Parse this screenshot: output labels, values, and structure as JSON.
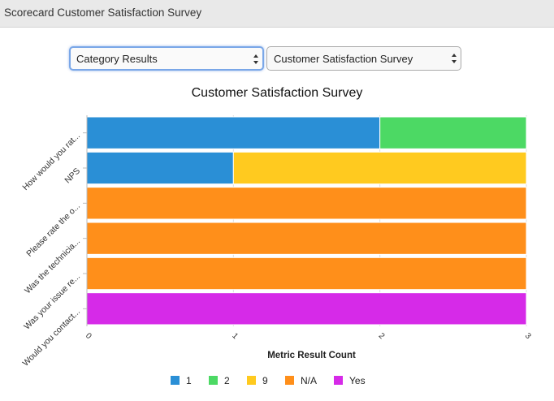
{
  "header": {
    "title": "Scorecard Customer Satisfaction Survey"
  },
  "controls": {
    "view_select": {
      "value": "Category Results"
    },
    "survey_select": {
      "value": "Customer Satisfaction Survey"
    }
  },
  "chart_data": {
    "type": "bar",
    "orientation": "horizontal",
    "stacked": true,
    "title": "Customer Satisfaction Survey",
    "xlabel": "Metric Result Count",
    "ylabel": "",
    "xlim": [
      0,
      3
    ],
    "xticks": [
      "0",
      "1",
      "2",
      "3"
    ],
    "grid": true,
    "legend_position": "bottom",
    "categories": [
      "How would you rat...",
      "NPS",
      "Please rate the o...",
      "Was the technicia...",
      "Was your issue re...",
      "Would you contact..."
    ],
    "series": [
      {
        "name": "1",
        "color": "#2a8fd6",
        "values": [
          2,
          1,
          0,
          0,
          0,
          0
        ]
      },
      {
        "name": "2",
        "color": "#4cd964",
        "values": [
          1,
          0,
          0,
          0,
          0,
          0
        ]
      },
      {
        "name": "9",
        "color": "#ffca1f",
        "values": [
          0,
          2,
          0,
          0,
          0,
          0
        ]
      },
      {
        "name": "N/A",
        "color": "#ff8f1a",
        "values": [
          0,
          0,
          3,
          3,
          3,
          0
        ]
      },
      {
        "name": "Yes",
        "color": "#d62ae8",
        "values": [
          0,
          0,
          0,
          0,
          0,
          3
        ]
      }
    ]
  }
}
